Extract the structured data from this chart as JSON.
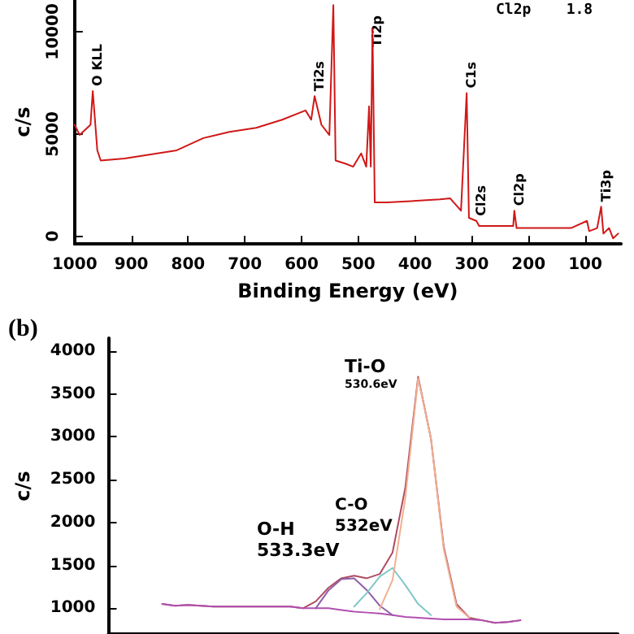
{
  "chart_data": [
    {
      "type": "line",
      "xlabel": "Binding Energy (eV)",
      "ylabel": "c/s",
      "xlim": [
        1000,
        37
      ],
      "xticks": [
        1000,
        900,
        800,
        700,
        600,
        500,
        400,
        300,
        200,
        100
      ],
      "ylim": [
        -380,
        11550
      ],
      "yticks": [
        0,
        5000,
        10000
      ],
      "grid": false,
      "marker": "none",
      "x": [
        1000,
        991,
        972,
        968,
        960,
        954,
        912,
        820,
        773,
        727,
        680,
        634,
        593,
        583,
        577,
        565,
        551,
        544,
        540,
        523,
        509,
        495,
        486,
        481,
        478,
        475,
        471,
        449,
        356,
        338,
        319,
        309,
        305,
        292,
        287,
        227,
        225,
        221,
        125,
        97,
        93,
        79,
        72,
        68,
        58,
        51,
        42
      ],
      "series": [
        {
          "color": "#d01818",
          "values": [
            5450,
            4950,
            5450,
            7100,
            4200,
            3700,
            3800,
            4200,
            4800,
            5100,
            5300,
            5700,
            6150,
            5700,
            6850,
            5450,
            4950,
            11300,
            3700,
            3550,
            3400,
            4050,
            3400,
            6350,
            3400,
            10150,
            1650,
            1650,
            1800,
            1850,
            1250,
            7000,
            900,
            750,
            500,
            500,
            1250,
            400,
            400,
            750,
            250,
            400,
            1450,
            130,
            400,
            -100,
            130
          ]
        }
      ],
      "annotations": [
        {
          "text": "O KLL",
          "x": 968,
          "y": 7100
        },
        {
          "text": "Ti2s",
          "x": 577,
          "y": 6850
        },
        {
          "text": "Ti2p",
          "x": 475,
          "y": 10150
        },
        {
          "text": "C1s",
          "x": 309,
          "y": 7000
        },
        {
          "text": "Cl2s",
          "x": 292,
          "y": 750
        },
        {
          "text": "Cl2p",
          "x": 225,
          "y": 1250
        },
        {
          "text": "Ti3p",
          "x": 72,
          "y": 1450
        },
        "Cl2p    1.8"
      ]
    },
    {
      "type": "line",
      "title": "(b)",
      "ylabel": "c/s",
      "ylim": [
        700,
        4150
      ],
      "yticks": [
        1000,
        1500,
        2000,
        2500,
        3000,
        3500,
        4000
      ],
      "grid": false,
      "marker": "none",
      "tick_labels": "y",
      "categories": [
        null,
        null,
        null,
        null,
        null,
        null,
        null,
        null,
        null,
        null,
        null,
        null,
        null,
        null,
        null,
        null,
        null,
        null,
        null,
        null,
        null,
        null,
        null,
        null,
        null,
        null,
        null,
        null,
        null
      ],
      "series": [
        {
          "color": "#b04c64",
          "values": [
            1050,
            1030,
            1040,
            1030,
            1020,
            1020,
            1020,
            1020,
            1020,
            1020,
            1020,
            1000,
            1080,
            1240,
            1350,
            1380,
            1350,
            1400,
            1650,
            2410,
            3700,
            2980,
            1720,
            1050,
            890,
            860,
            830,
            840,
            860
          ]
        },
        {
          "color": "#b050b0",
          "values": [
            1050,
            1030,
            1040,
            1030,
            1020,
            1020,
            1020,
            1020,
            1020,
            1020,
            1020,
            1000,
            1000,
            1000,
            980,
            960,
            950,
            940,
            920,
            900,
            890,
            880,
            870,
            870,
            870,
            860,
            830,
            840,
            860
          ]
        },
        {
          "color": "#9060a8",
          "values": [
            null,
            null,
            null,
            null,
            null,
            null,
            null,
            null,
            null,
            null,
            null,
            null,
            1000,
            1210,
            1340,
            1350,
            1210,
            1030,
            920,
            null,
            null,
            null,
            null,
            null,
            null,
            null,
            null,
            null,
            null
          ]
        },
        {
          "color": "#80c8c8",
          "values": [
            null,
            null,
            null,
            null,
            null,
            null,
            null,
            null,
            null,
            null,
            null,
            null,
            null,
            null,
            null,
            1020,
            1180,
            1370,
            1470,
            1270,
            1050,
            920,
            null,
            null,
            null,
            null,
            null,
            null,
            null
          ]
        },
        {
          "color": "#f0b090",
          "values": [
            null,
            null,
            null,
            null,
            null,
            null,
            null,
            null,
            null,
            null,
            null,
            null,
            null,
            null,
            null,
            null,
            null,
            990,
            1330,
            2290,
            3680,
            2980,
            1690,
            1020,
            890,
            null,
            null,
            null,
            null
          ]
        }
      ],
      "annotations": [
        "Ti-O",
        "530.6eV",
        "O-H",
        "533.3eV",
        "C-O",
        "532eV"
      ]
    }
  ]
}
